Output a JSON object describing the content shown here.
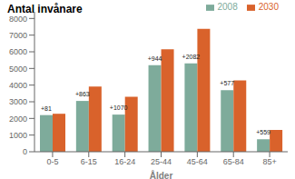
{
  "chart_data": {
    "type": "bar",
    "title": "Antal invånare",
    "xlabel": "Ålder",
    "categories": [
      "0-5",
      "6-15",
      "16-24",
      "25-44",
      "45-64",
      "65-84",
      "85+"
    ],
    "series": [
      {
        "name": "2008",
        "color": "#7eab9b",
        "values": [
          2200,
          3050,
          2230,
          5200,
          5300,
          3700,
          750
        ]
      },
      {
        "name": "2030",
        "color": "#d9622b",
        "values": [
          2280,
          3913,
          3300,
          6144,
          7382,
          4277,
          1309
        ]
      }
    ],
    "annotations": [
      "+81",
      "+863",
      "+1070",
      "+944",
      "+2082",
      "+577",
      "+559"
    ],
    "ylim": [
      0,
      8400
    ],
    "yticks": [
      0,
      1000,
      2000,
      3000,
      4000,
      5000,
      6000,
      7000,
      8000
    ],
    "grid": false,
    "legend": "upper right"
  }
}
